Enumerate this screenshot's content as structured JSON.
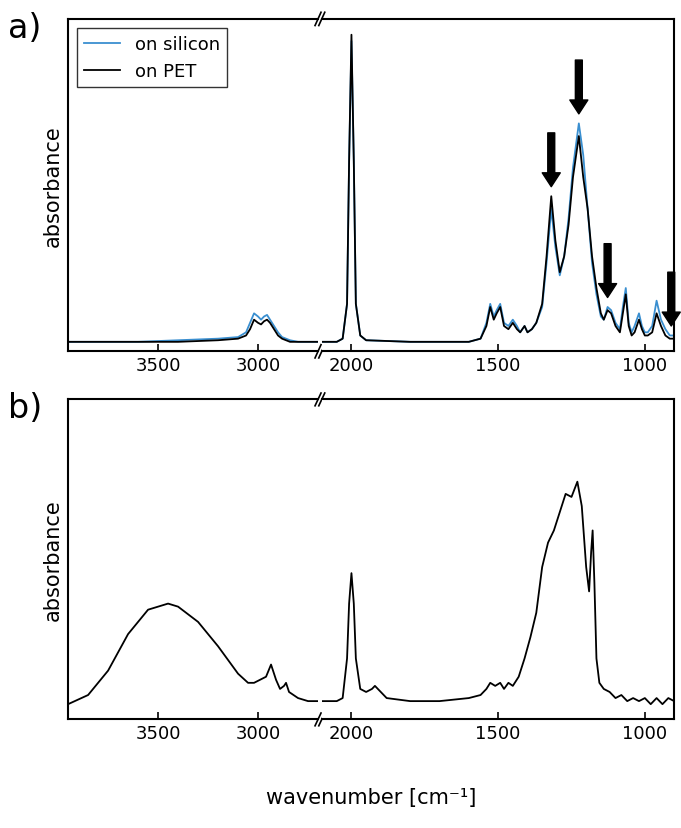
{
  "chart_data": [
    {
      "type": "line",
      "title": "a)",
      "y_label": "absorbance",
      "legend": "upper left",
      "tick_labels": "x",
      "xlim": [
        3950,
        2700
      ],
      "xticks": [
        3500,
        3000
      ],
      "ylim": [
        0,
        1.05
      ],
      "x": [
        3950,
        3800,
        3600,
        3400,
        3200,
        3100,
        3060,
        3040,
        3020,
        3000,
        2985,
        2970,
        2955,
        2940,
        2920,
        2900,
        2880,
        2860,
        2840,
        2800,
        2750,
        2700
      ],
      "series": [
        {
          "name": "on silicon",
          "color": "#3a8fd0",
          "values": [
            0.03,
            0.03,
            0.03,
            0.035,
            0.04,
            0.045,
            0.06,
            0.09,
            0.12,
            0.11,
            0.1,
            0.11,
            0.115,
            0.1,
            0.08,
            0.06,
            0.045,
            0.04,
            0.035,
            0.03,
            0.03,
            0.03
          ]
        },
        {
          "name": "on PET",
          "color": "#000000",
          "values": [
            0.03,
            0.03,
            0.03,
            0.03,
            0.035,
            0.04,
            0.05,
            0.07,
            0.1,
            0.09,
            0.085,
            0.095,
            0.1,
            0.09,
            0.07,
            0.05,
            0.04,
            0.035,
            0.03,
            0.03,
            0.03,
            0.03
          ]
        }
      ]
    },
    {
      "type": "line",
      "tick_labels": "x",
      "xlim": [
        2100,
        900
      ],
      "xticks": [
        2000,
        1500,
        1000
      ],
      "ylim": [
        0,
        1.05
      ],
      "arrows": [
        1319,
        1225,
        1127,
        910
      ],
      "x": [
        2100,
        2050,
        2030,
        2015,
        2008,
        2000,
        1992,
        1985,
        1970,
        1950,
        1800,
        1600,
        1560,
        1540,
        1527,
        1515,
        1505,
        1493,
        1480,
        1465,
        1450,
        1436,
        1425,
        1410,
        1400,
        1385,
        1370,
        1350,
        1335,
        1319,
        1305,
        1290,
        1275,
        1260,
        1245,
        1225,
        1210,
        1195,
        1180,
        1165,
        1150,
        1140,
        1127,
        1115,
        1100,
        1085,
        1075,
        1065,
        1055,
        1045,
        1035,
        1020,
        1010,
        1000,
        990,
        975,
        960,
        945,
        930,
        915,
        900
      ],
      "series": [
        {
          "name": "on silicon",
          "color": "#3a8fd0",
          "values": [
            0.03,
            0.03,
            0.04,
            0.15,
            0.6,
            0.98,
            0.6,
            0.15,
            0.05,
            0.035,
            0.03,
            0.03,
            0.04,
            0.09,
            0.15,
            0.11,
            0.13,
            0.15,
            0.09,
            0.08,
            0.1,
            0.08,
            0.06,
            0.08,
            0.06,
            0.07,
            0.09,
            0.14,
            0.28,
            0.45,
            0.33,
            0.24,
            0.3,
            0.42,
            0.58,
            0.72,
            0.62,
            0.45,
            0.28,
            0.18,
            0.11,
            0.1,
            0.14,
            0.13,
            0.09,
            0.07,
            0.14,
            0.2,
            0.09,
            0.06,
            0.08,
            0.12,
            0.08,
            0.06,
            0.06,
            0.08,
            0.16,
            0.1,
            0.07,
            0.05,
            0.05
          ]
        },
        {
          "name": "on PET",
          "color": "#000000",
          "values": [
            0.03,
            0.03,
            0.04,
            0.15,
            0.6,
            1.0,
            0.6,
            0.15,
            0.05,
            0.035,
            0.03,
            0.03,
            0.04,
            0.08,
            0.14,
            0.1,
            0.12,
            0.14,
            0.08,
            0.07,
            0.09,
            0.07,
            0.06,
            0.08,
            0.06,
            0.07,
            0.09,
            0.15,
            0.3,
            0.49,
            0.35,
            0.25,
            0.3,
            0.4,
            0.55,
            0.68,
            0.55,
            0.45,
            0.3,
            0.2,
            0.12,
            0.1,
            0.13,
            0.12,
            0.08,
            0.06,
            0.12,
            0.18,
            0.08,
            0.05,
            0.06,
            0.1,
            0.07,
            0.05,
            0.05,
            0.06,
            0.12,
            0.08,
            0.05,
            0.04,
            0.04
          ]
        }
      ]
    },
    {
      "type": "line",
      "title": "b)",
      "y_label": "absorbance",
      "x_label": "wavenumber [cm⁻¹]",
      "tick_labels": "x",
      "xlim": [
        3950,
        2700
      ],
      "xticks": [
        3500,
        3000
      ],
      "ylim": [
        0,
        1.05
      ],
      "x": [
        3950,
        3850,
        3750,
        3650,
        3550,
        3450,
        3400,
        3300,
        3200,
        3100,
        3050,
        3020,
        2990,
        2960,
        2935,
        2910,
        2890,
        2870,
        2860,
        2845,
        2800,
        2750,
        2700
      ],
      "series": [
        {
          "color": "#000000",
          "values": [
            0.05,
            0.08,
            0.16,
            0.28,
            0.36,
            0.38,
            0.37,
            0.32,
            0.24,
            0.15,
            0.12,
            0.12,
            0.13,
            0.14,
            0.18,
            0.13,
            0.1,
            0.11,
            0.12,
            0.09,
            0.07,
            0.06,
            0.06
          ]
        }
      ]
    },
    {
      "type": "line",
      "tick_labels": "x",
      "xlim": [
        2100,
        900
      ],
      "xticks": [
        2000,
        1500,
        1000
      ],
      "ylim": [
        0,
        1.05
      ],
      "x": [
        2100,
        2050,
        2030,
        2015,
        2008,
        2000,
        1992,
        1985,
        1970,
        1950,
        1930,
        1920,
        1900,
        1880,
        1800,
        1700,
        1600,
        1560,
        1540,
        1527,
        1510,
        1493,
        1480,
        1465,
        1450,
        1430,
        1410,
        1390,
        1370,
        1350,
        1330,
        1310,
        1290,
        1270,
        1250,
        1230,
        1215,
        1200,
        1190,
        1183,
        1178,
        1172,
        1165,
        1155,
        1140,
        1120,
        1100,
        1080,
        1060,
        1040,
        1020,
        1000,
        980,
        960,
        940,
        920,
        900
      ],
      "series": [
        {
          "color": "#000000",
          "values": [
            0.06,
            0.06,
            0.07,
            0.2,
            0.38,
            0.48,
            0.38,
            0.2,
            0.1,
            0.09,
            0.1,
            0.11,
            0.09,
            0.07,
            0.06,
            0.06,
            0.07,
            0.08,
            0.1,
            0.12,
            0.11,
            0.12,
            0.1,
            0.12,
            0.11,
            0.14,
            0.2,
            0.27,
            0.35,
            0.5,
            0.58,
            0.62,
            0.68,
            0.74,
            0.73,
            0.78,
            0.7,
            0.5,
            0.42,
            0.55,
            0.62,
            0.45,
            0.2,
            0.12,
            0.1,
            0.09,
            0.07,
            0.08,
            0.06,
            0.07,
            0.06,
            0.07,
            0.05,
            0.07,
            0.05,
            0.07,
            0.06
          ]
        }
      ]
    }
  ]
}
